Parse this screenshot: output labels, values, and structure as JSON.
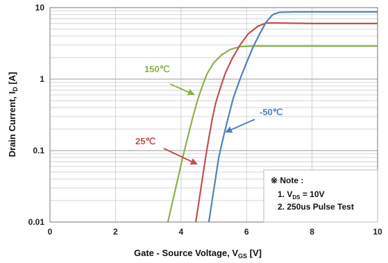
{
  "chart_data": {
    "type": "line",
    "x_scale": "linear",
    "y_scale": "log",
    "xlim": [
      0,
      10
    ],
    "ylim": [
      0.01,
      10
    ],
    "x_ticks": [
      "0",
      "2",
      "4",
      "6",
      "8",
      "10"
    ],
    "y_ticks": [
      "0.01",
      "0.1",
      "1",
      "10"
    ],
    "xlabel": {
      "main": "Gate - Source Voltage, V",
      "sub": "GS",
      "unit": " [V]"
    },
    "ylabel": {
      "main": "Drain Current, I",
      "sub": "D",
      "unit": " [A]"
    },
    "grid": true,
    "series": [
      {
        "name": "150℃",
        "color": "#8db04a",
        "points": [
          [
            3.6,
            0.01
          ],
          [
            3.75,
            0.02
          ],
          [
            3.9,
            0.04
          ],
          [
            4.05,
            0.08
          ],
          [
            4.2,
            0.15
          ],
          [
            4.35,
            0.28
          ],
          [
            4.5,
            0.5
          ],
          [
            4.65,
            0.8
          ],
          [
            4.8,
            1.2
          ],
          [
            5.0,
            1.7
          ],
          [
            5.25,
            2.2
          ],
          [
            5.5,
            2.6
          ],
          [
            5.8,
            2.85
          ],
          [
            6.2,
            2.9
          ],
          [
            7.0,
            2.9
          ],
          [
            8.5,
            2.9
          ],
          [
            10.0,
            2.9
          ]
        ]
      },
      {
        "name": "25℃",
        "color": "#c0504d",
        "points": [
          [
            4.45,
            0.01
          ],
          [
            4.55,
            0.02
          ],
          [
            4.65,
            0.04
          ],
          [
            4.75,
            0.08
          ],
          [
            4.85,
            0.15
          ],
          [
            4.95,
            0.27
          ],
          [
            5.05,
            0.45
          ],
          [
            5.2,
            0.75
          ],
          [
            5.35,
            1.2
          ],
          [
            5.55,
            1.9
          ],
          [
            5.8,
            3.0
          ],
          [
            6.05,
            4.3
          ],
          [
            6.35,
            5.5
          ],
          [
            6.6,
            6.1
          ],
          [
            6.9,
            6.1
          ],
          [
            8.0,
            6.0
          ],
          [
            10.0,
            6.0
          ]
        ]
      },
      {
        "name": "-50℃",
        "color": "#4f81bd",
        "points": [
          [
            4.85,
            0.01
          ],
          [
            4.95,
            0.02
          ],
          [
            5.05,
            0.04
          ],
          [
            5.15,
            0.08
          ],
          [
            5.3,
            0.16
          ],
          [
            5.45,
            0.3
          ],
          [
            5.6,
            0.55
          ],
          [
            5.8,
            1.0
          ],
          [
            6.0,
            1.7
          ],
          [
            6.2,
            2.8
          ],
          [
            6.4,
            4.3
          ],
          [
            6.6,
            6.3
          ],
          [
            6.8,
            8.0
          ],
          [
            7.0,
            8.6
          ],
          [
            7.5,
            8.7
          ],
          [
            10.0,
            8.7
          ]
        ]
      }
    ],
    "annotations": [
      {
        "label": "150℃",
        "color": "#8db04a"
      },
      {
        "label": "25℃",
        "color": "#c0504d"
      },
      {
        "label": "-50℃",
        "color": "#4f81bd"
      }
    ],
    "note": {
      "title": "※ Note :",
      "line1": {
        "prefix": "1. V",
        "sub": "DS",
        "suffix": " = 10V"
      },
      "line2": "2. 250us Pulse Test"
    }
  }
}
